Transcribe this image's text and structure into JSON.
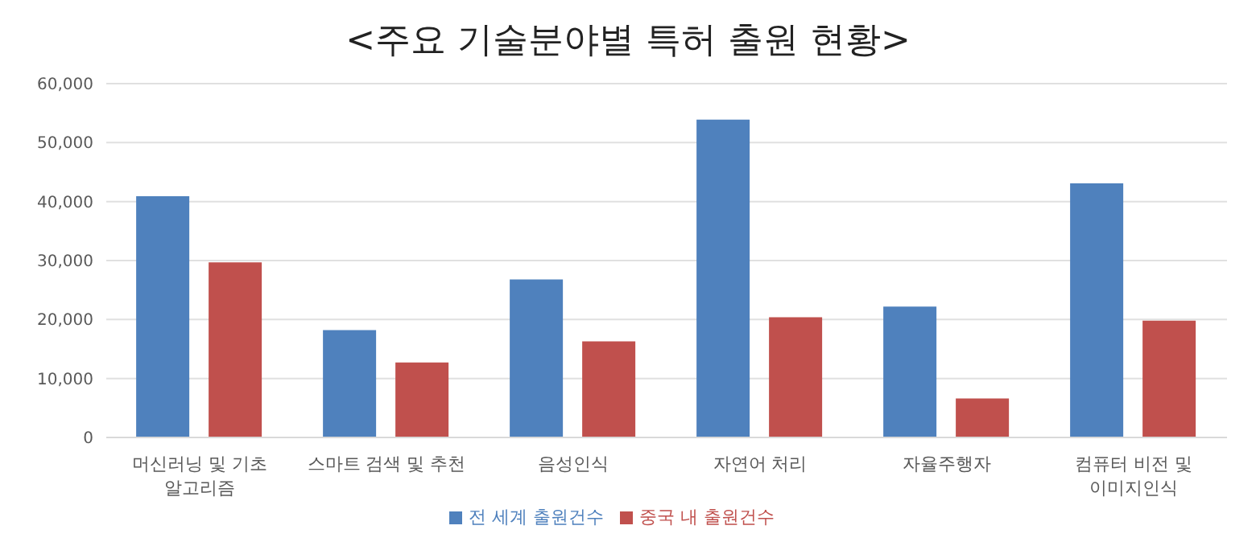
{
  "chart_data": {
    "type": "bar",
    "title": "<주요 기술분야별 특허 출원 현황>",
    "categories": [
      "머신러닝 및 기초 알고리즘",
      "스마트 검색 및 추천",
      "음성인식",
      "자연어 처리",
      "자율주행자",
      "컴퓨터 비전 및 이미지인식"
    ],
    "series": [
      {
        "name": "전 세계 출원건수",
        "color": "#4f81bd",
        "values": [
          40900,
          18200,
          26800,
          53900,
          22200,
          43100
        ]
      },
      {
        "name": "중국 내 출원건수",
        "color": "#c0504d",
        "values": [
          29700,
          12700,
          16300,
          20400,
          6600,
          19800
        ]
      }
    ],
    "ylim": [
      0,
      60000
    ],
    "yticks": [
      0,
      {
        "value": 10000,
        "label": "10,000"
      },
      {
        "value": 20000,
        "label": "20,000"
      },
      {
        "value": 30000,
        "label": "30,000"
      },
      {
        "value": 40000,
        "label": "40,000"
      },
      {
        "value": 50000,
        "label": "50,000"
      },
      {
        "value": 60000,
        "label": "60,000"
      }
    ],
    "grid": "y",
    "legend": "bottom"
  }
}
